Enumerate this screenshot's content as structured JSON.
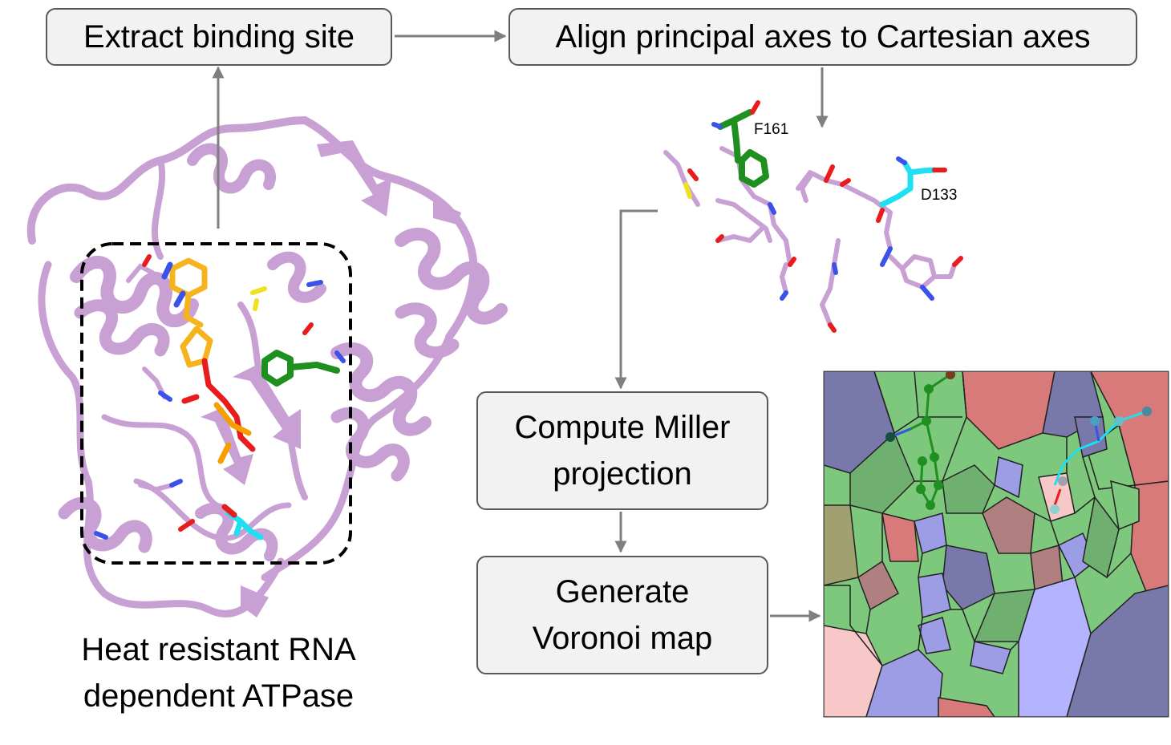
{
  "steps": {
    "extract": "Extract binding site",
    "align": "Align principal axes to Cartesian axes",
    "miller_line1": "Compute Miller",
    "miller_line2": "projection",
    "voronoi_line1": "Generate",
    "voronoi_line2": "Voronoi map"
  },
  "caption": {
    "line1": "Heat resistant RNA",
    "line2": "dependent ATPase"
  },
  "residue_labels": {
    "phe": "F161",
    "asp": "D133"
  },
  "colors": {
    "arrow": "#7f7f7f",
    "box_fill": "#f2f2f2",
    "box_border": "#595959",
    "protein": "#c9a0d4",
    "ligand": "#f5b41e",
    "phe_residue": "#1f8f1f",
    "asp_residue": "#1ee0f0",
    "oxygen": "#e81c1c",
    "nitrogen": "#3a52e8",
    "voronoi_blue": "#7878aa",
    "voronoi_red": "#d87a7a",
    "voronoi_green": "#7ec87e"
  }
}
